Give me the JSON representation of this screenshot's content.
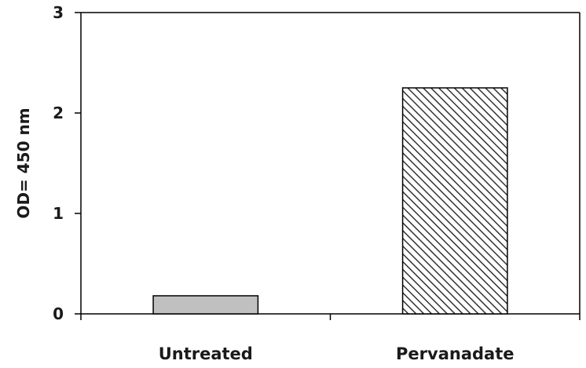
{
  "chart_data": {
    "type": "bar",
    "categories": [
      "Untreated",
      "Pervanadate"
    ],
    "values": [
      0.18,
      2.25
    ],
    "ylabel": "OD= 450 nm",
    "xlabel": "",
    "title": "",
    "ylim": [
      0,
      3
    ],
    "yticks": [
      0,
      1,
      2,
      3
    ],
    "grid": false,
    "bar_styles": [
      {
        "fill": "#c0c0c0",
        "pattern": "solid"
      },
      {
        "fill": "#ffffff",
        "pattern": "diagonal-hatch",
        "hatch_color": "#333333"
      }
    ],
    "border_color": "#000000"
  }
}
